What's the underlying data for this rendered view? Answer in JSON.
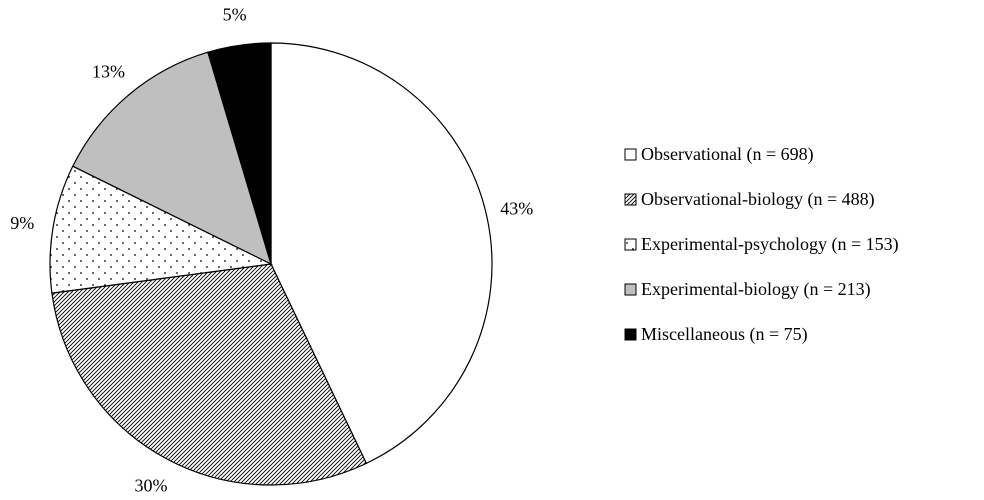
{
  "chart_data": {
    "type": "pie",
    "slices": [
      {
        "label": "Observational",
        "legend": "Observational (n = 698)",
        "n": 698,
        "percent_label": "43%",
        "fill": "white"
      },
      {
        "label": "Observational-biology",
        "legend": "Observational-biology (n = 488)",
        "n": 488,
        "percent_label": "30%",
        "fill": "hatch"
      },
      {
        "label": "Experimental-psychology",
        "legend": "Experimental-psychology (n = 153)",
        "n": 153,
        "percent_label": "9%",
        "fill": "dots"
      },
      {
        "label": "Experimental-biology",
        "legend": "Experimental-biology (n = 213)",
        "n": 213,
        "percent_label": "13%",
        "fill": "gray"
      },
      {
        "label": "Miscellaneous",
        "legend": "Miscellaneous (n = 75)",
        "n": 75,
        "percent_label": "5%",
        "fill": "black"
      }
    ],
    "start": "12 o'clock",
    "direction": "clockwise",
    "legend_position": "right"
  },
  "colors": {
    "white": "#ffffff",
    "gray": "#bfbfbf",
    "black": "#000000",
    "outline": "#000000"
  }
}
